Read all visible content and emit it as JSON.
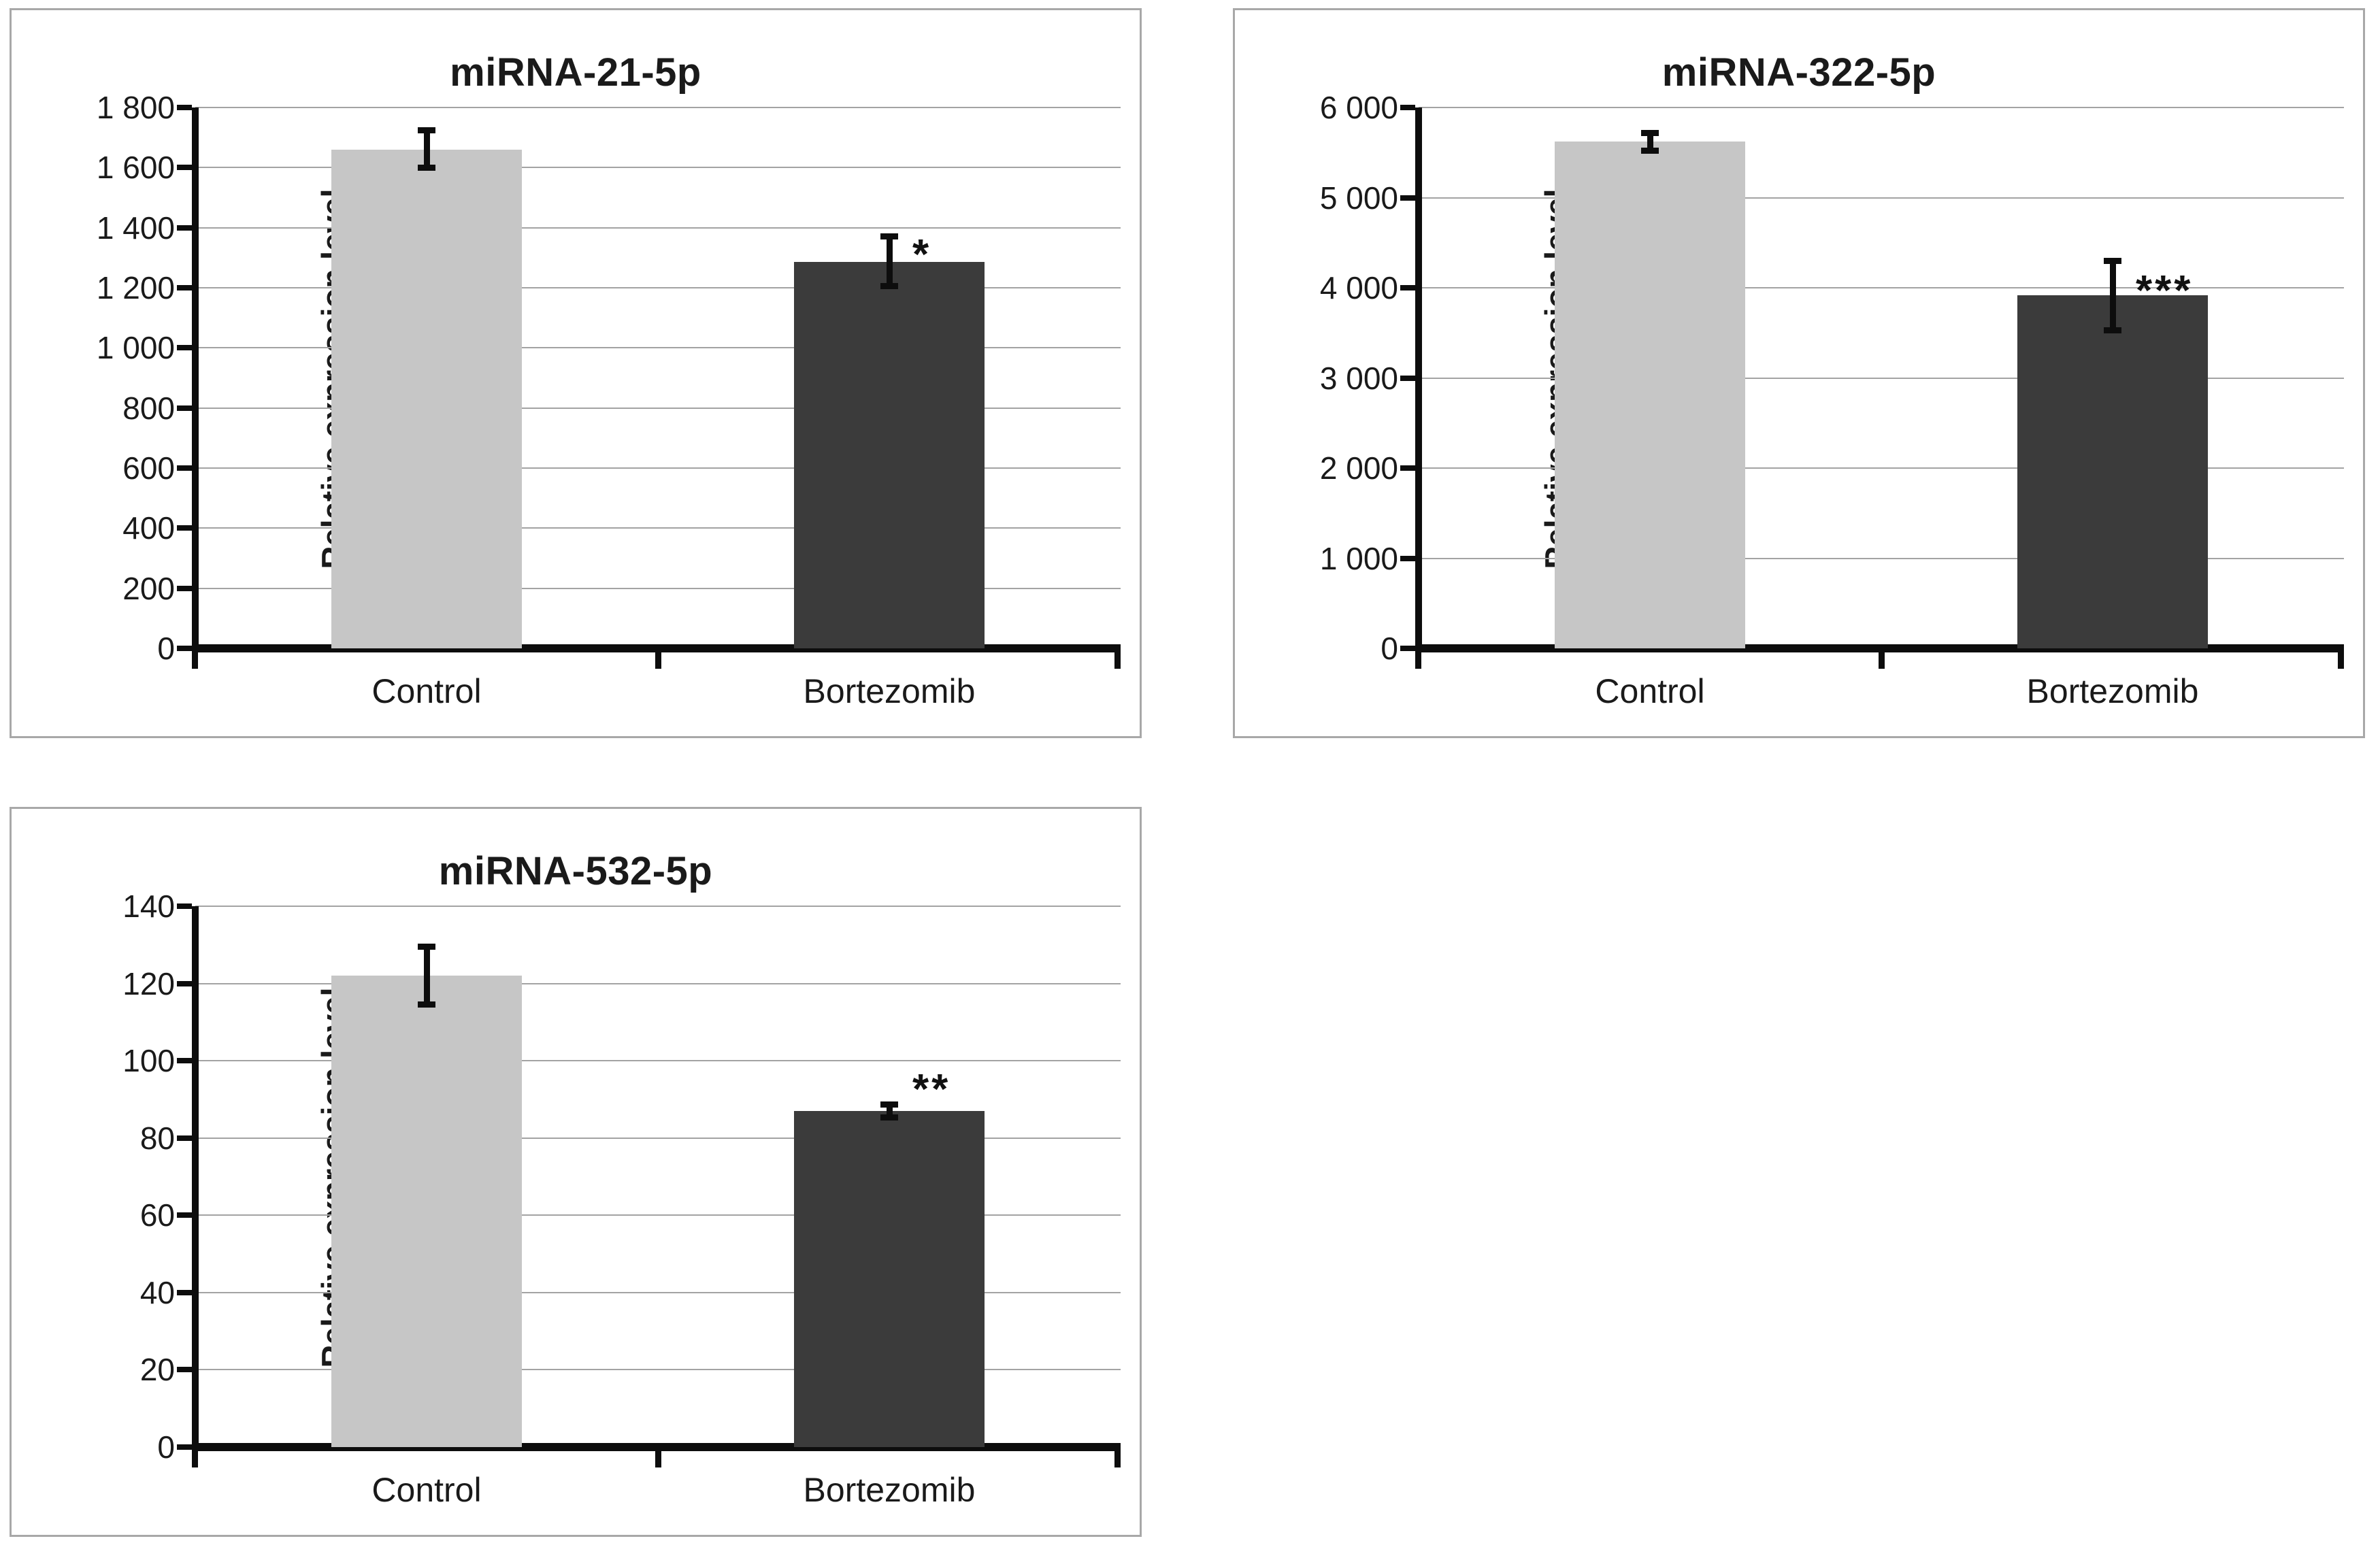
{
  "figure": {
    "background_color": "#ffffff",
    "panel_border_color": "#a8a8a8",
    "gridline_color": "#a3a3a3",
    "axis_color": "#0d0d0d",
    "text_color": "#1a1a1a",
    "control_bar_color": "#c6c6c6",
    "treatment_bar_color": "#3b3b3b"
  },
  "chart_data": [
    {
      "type": "bar",
      "title": "miRNA-21-5p",
      "xlabel": "",
      "ylabel": "Relative expression level",
      "categories": [
        "Control",
        "Bortezomib"
      ],
      "ylim": [
        0,
        1800
      ],
      "ytick_step": 200,
      "ytick_labels": [
        "1 800",
        "1 600",
        "1 400",
        "1 200",
        "1 000",
        "800",
        "600",
        "400",
        "200",
        "0"
      ],
      "grid": true,
      "legend_position": "none",
      "bars": [
        {
          "category": "Control",
          "value": 1660,
          "error_low": 1600,
          "error_high": 1725,
          "color": "#c6c6c6",
          "significance": ""
        },
        {
          "category": "Bortezomib",
          "value": 1285,
          "error_low": 1205,
          "error_high": 1370,
          "color": "#3b3b3b",
          "significance": "*",
          "significance_y": 1330
        }
      ]
    },
    {
      "type": "bar",
      "title": "miRNA-322-5p",
      "xlabel": "",
      "ylabel": "Relative expression level",
      "categories": [
        "Control",
        "Bortezomib"
      ],
      "ylim": [
        0,
        6000
      ],
      "ytick_step": 1000,
      "ytick_labels": [
        "6 000",
        "5 000",
        "4 000",
        "3 000",
        "2 000",
        "1 000",
        "0"
      ],
      "grid": true,
      "legend_position": "none",
      "bars": [
        {
          "category": "Control",
          "value": 5620,
          "error_low": 5520,
          "error_high": 5720,
          "color": "#c6c6c6",
          "significance": ""
        },
        {
          "category": "Bortezomib",
          "value": 3920,
          "error_low": 3530,
          "error_high": 4300,
          "color": "#3b3b3b",
          "significance": "***",
          "significance_y": 4030
        }
      ]
    },
    {
      "type": "bar",
      "title": "miRNA-532-5p",
      "xlabel": "",
      "ylabel": "Relative expression level",
      "categories": [
        "Control",
        "Bortezomib"
      ],
      "ylim": [
        0,
        140
      ],
      "ytick_step": 20,
      "ytick_labels": [
        "140",
        "120",
        "100",
        "80",
        "60",
        "40",
        "20",
        "0"
      ],
      "grid": true,
      "legend_position": "none",
      "bars": [
        {
          "category": "Control",
          "value": 122,
          "error_low": 114.5,
          "error_high": 129.5,
          "color": "#c6c6c6",
          "significance": ""
        },
        {
          "category": "Bortezomib",
          "value": 87,
          "error_low": 85.3,
          "error_high": 88.7,
          "color": "#3b3b3b",
          "significance": "**",
          "significance_y": 94
        }
      ]
    }
  ]
}
